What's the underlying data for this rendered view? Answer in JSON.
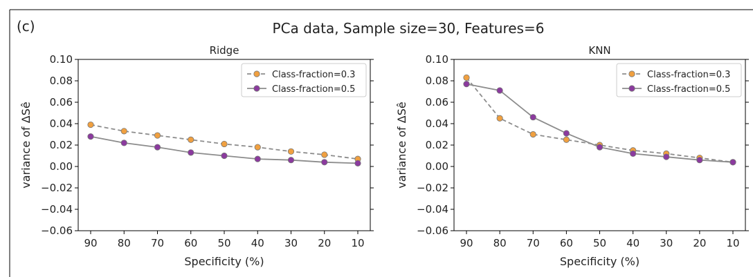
{
  "figure": {
    "panel_tag": "(c)",
    "title": "PCa data, Sample size=30, Features=6"
  },
  "colors": {
    "class_0_3": "#f0a040",
    "class_0_5": "#8b3a9e",
    "line_0_3": "#888888",
    "line_0_5": "#888888"
  },
  "chart_data": [
    {
      "type": "line",
      "title": "Ridge",
      "xlabel": "Specificity (%)",
      "ylabel": "variance of ΔSê",
      "x": [
        90,
        80,
        70,
        60,
        50,
        40,
        30,
        20,
        10
      ],
      "x_tick_labels": [
        "90",
        "80",
        "70",
        "60",
        "50",
        "40",
        "30",
        "20",
        "10"
      ],
      "x_inverted": true,
      "ylim": [
        -0.06,
        0.1
      ],
      "y_ticks": [
        -0.06,
        -0.04,
        -0.02,
        0.0,
        0.02,
        0.04,
        0.06,
        0.08,
        0.1
      ],
      "y_tick_labels": [
        "−0.06",
        "−0.04",
        "−0.02",
        "0.00",
        "0.02",
        "0.04",
        "0.06",
        "0.08",
        "0.10"
      ],
      "grid": false,
      "legend_position": "top-right",
      "series": [
        {
          "name": "Class-fraction=0.3",
          "style": "dashed",
          "color_key": "class_0_3",
          "values": [
            0.039,
            0.033,
            0.029,
            0.025,
            0.021,
            0.018,
            0.014,
            0.011,
            0.007
          ]
        },
        {
          "name": "Class-fraction=0.5",
          "style": "solid",
          "color_key": "class_0_5",
          "values": [
            0.028,
            0.022,
            0.018,
            0.013,
            0.01,
            0.007,
            0.006,
            0.004,
            0.003
          ]
        }
      ]
    },
    {
      "type": "line",
      "title": "KNN",
      "xlabel": "Specificity (%)",
      "ylabel": "variance of ΔSê",
      "x": [
        90,
        80,
        70,
        60,
        50,
        40,
        30,
        20,
        10
      ],
      "x_tick_labels": [
        "90",
        "80",
        "70",
        "60",
        "50",
        "40",
        "30",
        "20",
        "10"
      ],
      "x_inverted": true,
      "ylim": [
        -0.06,
        0.1
      ],
      "y_ticks": [
        -0.06,
        -0.04,
        -0.02,
        0.0,
        0.02,
        0.04,
        0.06,
        0.08,
        0.1
      ],
      "y_tick_labels": [
        "−0.06",
        "−0.04",
        "−0.02",
        "0.00",
        "0.02",
        "0.04",
        "0.06",
        "0.08",
        "0.10"
      ],
      "grid": false,
      "legend_position": "top-right",
      "series": [
        {
          "name": "Class-fraction=0.3",
          "style": "dashed",
          "color_key": "class_0_3",
          "values": [
            0.083,
            0.045,
            0.03,
            0.025,
            0.02,
            0.015,
            0.012,
            0.008,
            0.004
          ]
        },
        {
          "name": "Class-fraction=0.5",
          "style": "solid",
          "color_key": "class_0_5",
          "values": [
            0.077,
            0.071,
            0.046,
            0.031,
            0.018,
            0.012,
            0.009,
            0.006,
            0.004
          ]
        }
      ]
    }
  ]
}
